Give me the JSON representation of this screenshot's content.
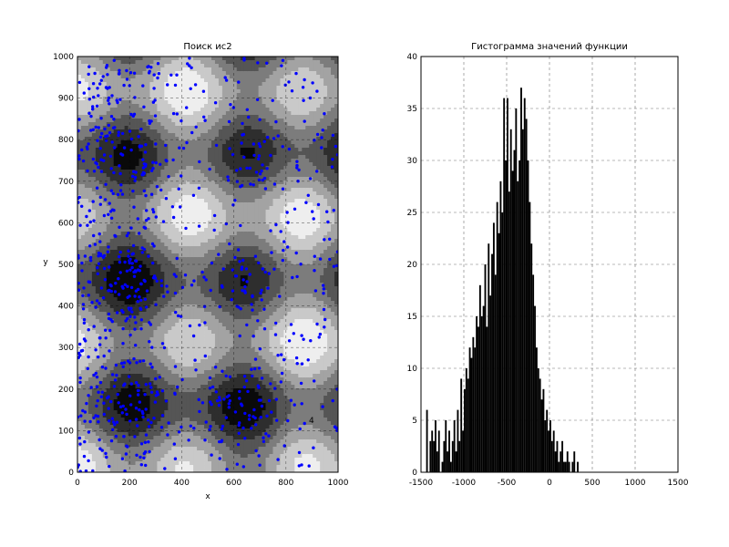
{
  "chart_data": [
    {
      "type": "contour",
      "title": "Поиск ис2",
      "xlabel": "x",
      "ylabel": "y",
      "xlim": [
        0,
        1000
      ],
      "ylim": [
        0,
        1000
      ],
      "xticks": [
        "0",
        "200",
        "400",
        "600",
        "800",
        "1000"
      ],
      "yticks": [
        "0",
        "100",
        "200",
        "300",
        "400",
        "500",
        "600",
        "700",
        "800",
        "900",
        "1000"
      ],
      "grid": true,
      "contour_label": "4",
      "fill_colors": [
        "#0a0a0a",
        "#2e2e2e",
        "#555555",
        "#7c7c7c",
        "#a3a3a3",
        "#c9c9c9",
        "#eeeeee"
      ],
      "scatter_color": "#0000ff",
      "scatter_series": [
        {
          "point_count": 900,
          "distribution": "points densest near x=0–300 and along dark bands; sample generated"
        }
      ]
    },
    {
      "type": "bar",
      "title": "Гистограмма значений функции",
      "xlabel": "",
      "ylabel": "",
      "xlim": [
        -1500,
        1500
      ],
      "ylim": [
        0,
        40
      ],
      "xticks": [
        "-1500",
        "-1000",
        "-500",
        "0",
        "500",
        "1000",
        "1500"
      ],
      "yticks": [
        "0",
        "5",
        "10",
        "15",
        "20",
        "25",
        "30",
        "35",
        "40"
      ],
      "grid": true,
      "bar_color": "#000000",
      "bin_width": 20,
      "bin_start": -1440,
      "values": [
        6,
        0,
        3,
        4,
        3,
        5,
        2,
        4,
        0,
        1,
        3,
        5,
        2,
        4,
        1,
        3,
        5,
        2,
        6,
        3,
        9,
        4,
        8,
        10,
        9,
        12,
        11,
        13,
        12,
        15,
        14,
        18,
        15,
        16,
        20,
        14,
        22,
        17,
        21,
        24,
        19,
        26,
        23,
        28,
        25,
        36,
        30,
        36,
        27,
        33,
        29,
        31,
        35,
        28,
        30,
        37,
        33,
        36,
        34,
        30,
        26,
        22,
        19,
        16,
        12,
        10,
        9,
        7,
        8,
        5,
        6,
        4,
        5,
        3,
        4,
        2,
        3,
        1,
        2,
        3,
        1,
        1,
        2,
        1,
        0,
        1,
        2,
        0,
        1
      ]
    }
  ]
}
